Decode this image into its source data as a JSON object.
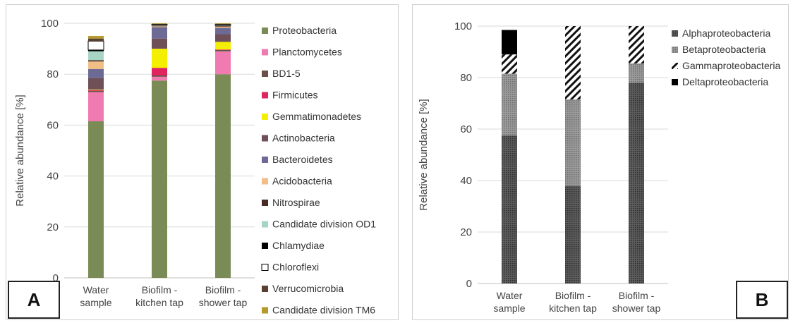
{
  "panels": {
    "a": {
      "label": "A"
    },
    "b": {
      "label": "B"
    }
  },
  "chart_data": [
    {
      "type": "bar",
      "stacked": true,
      "ylabel": "Relative abundance [%]",
      "xlabel": "",
      "ylim": [
        0,
        100
      ],
      "yticks": [
        0,
        20,
        40,
        60,
        80,
        100
      ],
      "categories": [
        "Water sample",
        "Biofilm - kitchen tap",
        "Biofilm - shower tap"
      ],
      "category_lines": [
        [
          "Water",
          "sample"
        ],
        [
          "Biofilm -",
          "kitchen tap"
        ],
        [
          "Biofilm -",
          "shower tap"
        ]
      ],
      "legend_position": "right",
      "series": [
        {
          "name": "Proteobacteria",
          "color": "#7b8b55",
          "values": [
            61.5,
            77.5,
            80.0
          ]
        },
        {
          "name": "Planctomycetes",
          "color": "#f07bb0",
          "values": [
            11.5,
            1.5,
            9.0
          ]
        },
        {
          "name": "BD1-5",
          "color": "#6a5048",
          "values": [
            0.5,
            0.5,
            0.5
          ]
        },
        {
          "name": "Firmicutes",
          "color": "#e0245e",
          "values": [
            0.3,
            3.0,
            0.2
          ]
        },
        {
          "name": "Gemmatimonadetes",
          "color": "#f4ef00",
          "values": [
            0.2,
            7.5,
            3.0
          ]
        },
        {
          "name": "Actinobacteria",
          "color": "#6f4f58",
          "values": [
            4.5,
            4.0,
            3.0
          ]
        },
        {
          "name": "Bacteroidetes",
          "color": "#6d6b96",
          "values": [
            3.5,
            4.5,
            2.5
          ]
        },
        {
          "name": "Acidobacteria",
          "color": "#f2be88",
          "values": [
            3.0,
            0.3,
            0.5
          ]
        },
        {
          "name": "Nitrospirae",
          "color": "#4a2a22",
          "values": [
            0.5,
            0.2,
            0.2
          ]
        },
        {
          "name": "Candidate division OD1",
          "color": "#a8d4c6",
          "values": [
            3.5,
            0.2,
            0.2
          ]
        },
        {
          "name": "Chlamydiae",
          "color": "#000000",
          "values": [
            0.5,
            0.1,
            0.1
          ]
        },
        {
          "name": "Chloroflexi",
          "color": "#ffffff",
          "values": [
            3.5,
            0.2,
            0.3
          ]
        },
        {
          "name": "Verrucomicrobia",
          "color": "#5a4032",
          "values": [
            1.0,
            0.3,
            0.3
          ]
        },
        {
          "name": "Candidate division TM6",
          "color": "#b39a2a",
          "values": [
            1.0,
            0.2,
            0.2
          ]
        }
      ]
    },
    {
      "type": "bar",
      "stacked": true,
      "ylabel": "Relative abundance [%]",
      "xlabel": "",
      "ylim": [
        0,
        100
      ],
      "yticks": [
        0,
        20,
        40,
        60,
        80,
        100
      ],
      "categories": [
        "Water sample",
        "Biofilm - kitchen tap",
        "Biofilm - shower tap"
      ],
      "category_lines": [
        [
          "Water",
          "sample"
        ],
        [
          "Biofilm -",
          "kitchen tap"
        ],
        [
          "Biofilm -",
          "shower tap"
        ]
      ],
      "legend_position": "top-right",
      "series": [
        {
          "name": "Alphaproteobacteria",
          "pattern": "dots-dark",
          "values": [
            57.5,
            38.0,
            78.0
          ]
        },
        {
          "name": "Betaproteobacteria",
          "pattern": "dots-light",
          "values": [
            24.0,
            33.5,
            7.5
          ]
        },
        {
          "name": "Gammaproteobacteria",
          "pattern": "diagonal",
          "values": [
            7.5,
            28.5,
            14.5
          ]
        },
        {
          "name": "Deltaproteobacteria",
          "pattern": "solid-black",
          "values": [
            9.5,
            0.0,
            0.0
          ]
        }
      ]
    }
  ]
}
